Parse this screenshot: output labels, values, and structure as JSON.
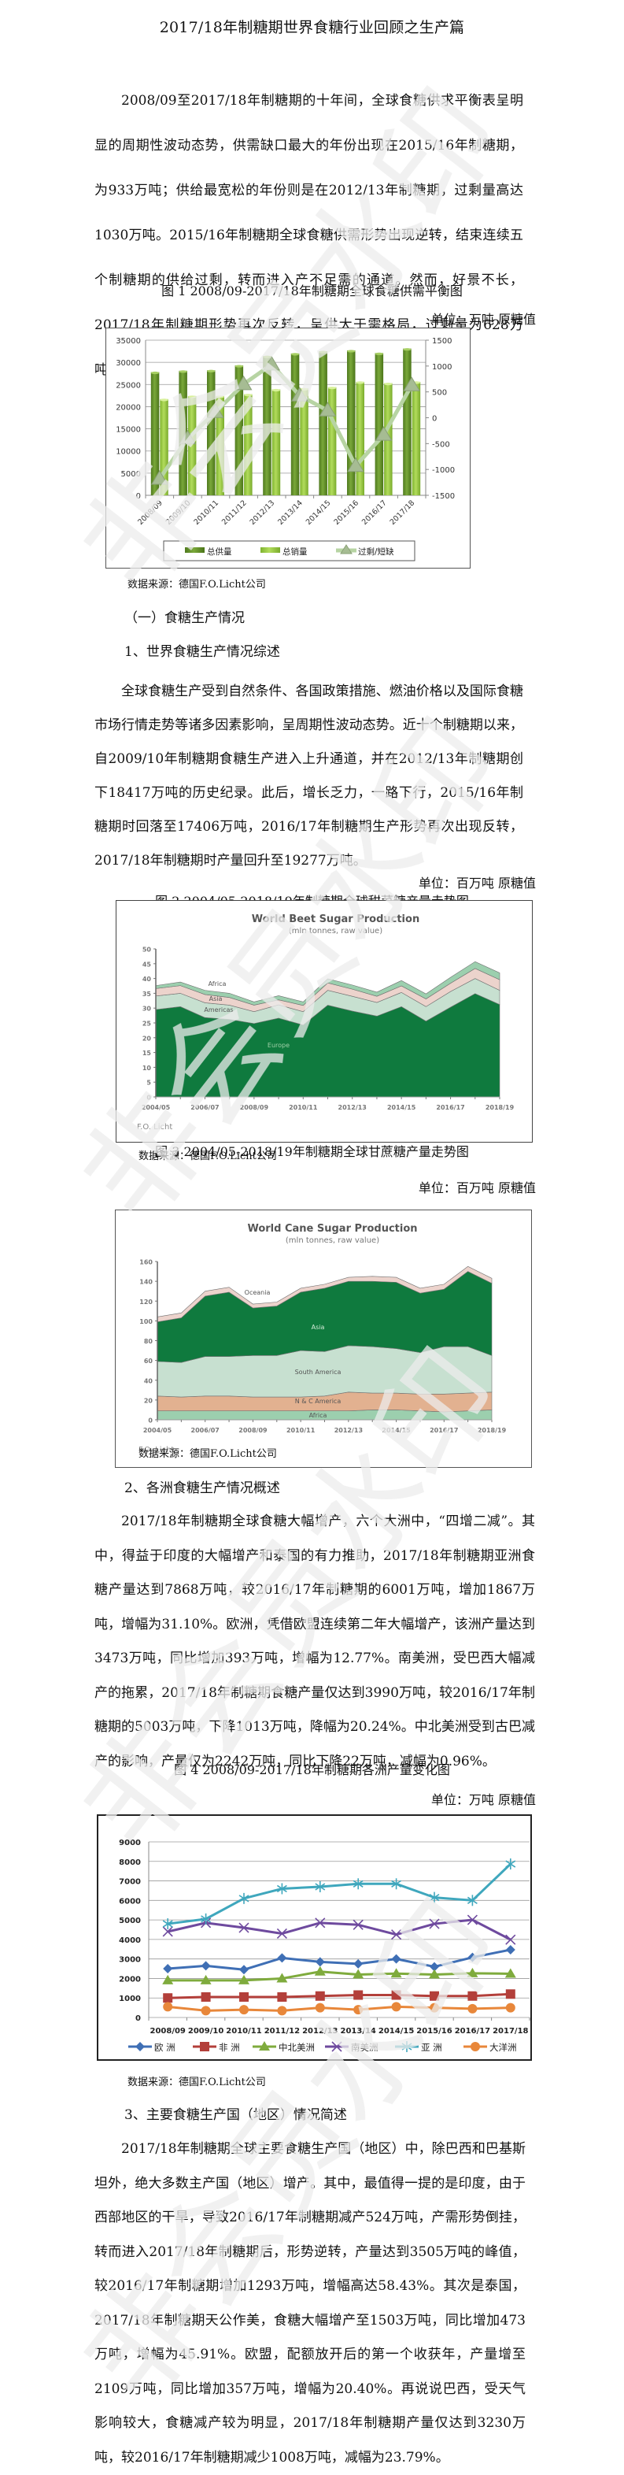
{
  "document": {
    "title": "2017/18年制糖期世界食糖行业回顾之生产篇",
    "intro": "2008/09至2017/18年制糖期的十年间，全球食糖供求平衡表呈明显的周期性波动态势，供需缺口最大的年份出现在2015/16年制糖期，为933万吨；供给最宽松的年份则是在2012/13年制糖期，过剩量高达1030万吨。2015/16年制糖期全球食糖供需形势出现逆转，结束连续五个制糖期的供给过剩，转而进入产不足需的通道。然而，好景不长，2017/18年制糖期形势再次反转，呈供大于需格局，过剩量为628万吨。",
    "fig1_caption": "图 1 2008/09-2017/18年制糖期全球食糖供需平衡图",
    "fig1_unit": "单位：万吨 原糖值",
    "source": "数据来源：德国F.O.Licht公司",
    "section1": "（一）食糖生产情况",
    "sub1": "1、世界食糖生产情况综述",
    "p1": "全球食糖生产受到自然条件、各国政策措施、燃油价格以及国际食糖市场行情走势等诸多因素影响，呈周期性波动态势。近十个制糖期以来，自2009/10年制糖期食糖生产进入上升通道，并在2012/13年制糖期创下18417万吨的历史纪录。此后，增长乏力，一路下行，2015/16年制糖期时回落至17406万吨，2016/17年制糖期生产形势再次出现反转，2017/18年制糖期时产量回升至19277万吨。",
    "fig2_caption": "图 2 2004/05-2018/19年制糖期全球甜菜糖产量走势图",
    "fig2_unit": "单位：百万吨 原糖值",
    "fig3_caption": "图 3  2004/05-2018/19年制糖期全球甘蔗糖产量走势图",
    "fig3_unit": "单位：百万吨 原糖值",
    "sub2": "2、各洲食糖生产情况概述",
    "p2": "2017/18年制糖期全球食糖大幅增产，六个大洲中，“四增二减”。其中，得益于印度的大幅增产和泰国的有力推助，2017/18年制糖期亚洲食糖产量达到7868万吨，较2016/17年制糖期的6001万吨，增加1867万吨，增幅为31.10%。欧洲，凭借欧盟连续第二年大幅增产，该洲产量达到3473万吨，同比增加393万吨，增幅为12.77%。南美洲，受巴西大幅减产的拖累，2017/18年制糖期食糖产量仅达到3990万吨，较2016/17年制糖期的5003万吨，下降1013万吨，降幅为20.24%。中北美洲受到古巴减产的影响，产量仅为2242万吨，同比下降22万吨，减幅为0.96%。",
    "fig4_caption": "图 4 2008/09-2017/18年制糖期各洲产量变化图",
    "fig4_unit": "单位：万吨 原糖值",
    "sub3": "3、主要食糖生产国（地区）情况简述",
    "p3": "2017/18年制糖期全球主要食糖生产国（地区）中，除巴西和巴基斯坦外，绝大多数主产国（地区）增产。其中，最值得一提的是印度，由于西部地区的干旱，导致2016/17年制糖期减产524万吨，产需形势倒挂，转而进入2017/18年制糖期后，形势逆转，产量达到3505万吨的峰值，较2016/17年制糖期增加1293万吨，增幅高达58.43%。其次是泰国，2017/18年制糖期天公作美，食糖大幅增产至1503万吨，同比增加473万吨，增幅为45.91%。欧盟，配额放开后的第一个收获年，产量增至2109万吨，同比增加357万吨，增幅为20.40%。再说说巴西，受天气影响较大，食糖减产较为明显，2017/18年制糖期产量仅达到3230万吨，较2016/17年制糖期减少1008万吨，减幅为23.79%。",
    "watermark": "非会员水印"
  },
  "chart_data": [
    {
      "id": "fig1",
      "type": "bar",
      "title": "2008/09-2017/18年制糖期全球食糖供需平衡图",
      "categories": [
        "2008/09",
        "2009/10",
        "2010/11",
        "2011/12",
        "2012/13",
        "2013/14",
        "2014/15",
        "2015/16",
        "2016/17",
        "2017/18"
      ],
      "series": [
        {
          "name": "总供量",
          "type": "bar",
          "axis": "left",
          "color": "#6b9a2e",
          "values": [
            27800,
            28100,
            28200,
            29300,
            31400,
            32000,
            32500,
            32700,
            32100,
            33100
          ]
        },
        {
          "name": "总销量",
          "type": "bar",
          "axis": "left",
          "color": "#9ccc44",
          "values": [
            21700,
            22400,
            22400,
            22800,
            23900,
            24100,
            24400,
            25600,
            25300,
            25600
          ]
        },
        {
          "name": "过剩/短缺",
          "type": "line",
          "axis": "right",
          "color": "#b7d4a3",
          "values": [
            -1180,
            -400,
            110,
            650,
            1030,
            430,
            140,
            -933,
            -330,
            628
          ]
        }
      ],
      "ylim_left": [
        0,
        35000
      ],
      "yticks_left": [
        0,
        5000,
        10000,
        15000,
        20000,
        25000,
        30000,
        35000
      ],
      "ylim_right": [
        -1500,
        1500
      ],
      "yticks_right": [
        -1500,
        -1000,
        -500,
        0,
        500,
        1000,
        1500
      ],
      "legend_position": "bottom",
      "grid": true
    },
    {
      "id": "fig2",
      "type": "area",
      "title": "World Beet Sugar Production",
      "subtitle": "(mln tonnes, raw value)",
      "credit": "F.O. Licht",
      "x": [
        "2004/05",
        "2005/06",
        "2006/07",
        "2007/08",
        "2008/09",
        "2009/10",
        "2010/11",
        "2011/12",
        "2012/13",
        "2013/14",
        "2014/15",
        "2015/16",
        "2016/17",
        "2017/18",
        "2018/19"
      ],
      "xtick_labels": [
        "2004/05",
        "2006/07",
        "2008/09",
        "2010/11",
        "2012/13",
        "2014/15",
        "2016/17",
        "2018/19"
      ],
      "series": [
        {
          "name": "Europe",
          "color": "#0f7a3e",
          "values": [
            29.5,
            30.5,
            26.8,
            26.2,
            24.8,
            26.6,
            24.3,
            31.0,
            29.0,
            27.3,
            30.5,
            25.6,
            30.3,
            34.9,
            31.2
          ]
        },
        {
          "name": "Americas",
          "color": "#c7e0d0",
          "values": [
            4.6,
            4.5,
            5.0,
            4.8,
            4.0,
            4.5,
            4.5,
            5.0,
            5.0,
            4.6,
            4.8,
            4.9,
            5.3,
            5.1,
            4.8
          ]
        },
        {
          "name": "Asia",
          "color": "#ecd3cc",
          "values": [
            2.5,
            2.6,
            2.8,
            2.6,
            2.2,
            1.7,
            2.1,
            2.5,
            2.4,
            2.1,
            2.2,
            2.6,
            2.8,
            3.4,
            3.6
          ]
        },
        {
          "name": "Africa",
          "color": "#9ccfae",
          "values": [
            1.0,
            1.2,
            1.4,
            1.4,
            1.1,
            1.4,
            1.2,
            1.4,
            1.4,
            1.4,
            1.8,
            1.7,
            2.0,
            2.3,
            2.3
          ]
        }
      ],
      "ylim": [
        0,
        50
      ],
      "yticks": [
        0,
        5,
        10,
        15,
        20,
        25,
        30,
        35,
        40,
        45,
        50
      ]
    },
    {
      "id": "fig3",
      "type": "area",
      "title": "World Cane Sugar Production",
      "subtitle": "(mln tonnes, raw value)",
      "credit": "F.O. Licht",
      "x": [
        "2004/05",
        "2005/06",
        "2006/07",
        "2007/08",
        "2008/09",
        "2009/10",
        "2010/11",
        "2011/12",
        "2012/13",
        "2013/14",
        "2014/15",
        "2015/16",
        "2016/17",
        "2017/18",
        "2018/19"
      ],
      "xtick_labels": [
        "2004/05",
        "2006/07",
        "2008/09",
        "2010/11",
        "2012/13",
        "2014/15",
        "2016/17",
        "2018/19"
      ],
      "series": [
        {
          "name": "Africa",
          "color": "#9ccfae",
          "values": [
            9,
            9,
            9,
            9,
            9,
            9,
            9,
            9,
            9,
            10,
            10,
            9,
            8,
            9,
            10
          ]
        },
        {
          "name": "N & C America",
          "color": "#e2b190",
          "values": [
            15,
            14,
            15,
            15,
            14,
            14,
            14,
            15,
            19,
            17,
            17,
            17,
            18,
            18,
            18
          ]
        },
        {
          "name": "South America",
          "color": "#c7e0d0",
          "values": [
            35,
            35,
            40,
            40,
            42,
            42,
            47,
            45,
            47,
            47,
            45,
            42,
            48,
            47,
            37
          ]
        },
        {
          "name": "Asia",
          "color": "#0f7a3e",
          "values": [
            40,
            45,
            61,
            65,
            48,
            50,
            59,
            64,
            65,
            66,
            67,
            60,
            58,
            76,
            73
          ]
        },
        {
          "name": "Oceania",
          "color": "#ecd3cc",
          "values": [
            5,
            5,
            5,
            5,
            4,
            4,
            4,
            4,
            4,
            5,
            5,
            5,
            5,
            5,
            5
          ]
        }
      ],
      "ylim": [
        0,
        160
      ],
      "yticks": [
        0,
        20,
        40,
        60,
        80,
        100,
        120,
        140,
        160
      ]
    },
    {
      "id": "fig4",
      "type": "line",
      "title": "2008/09-2017/18年制糖期各洲产量变化图",
      "categories": [
        "2008/09",
        "2009/10",
        "2010/11",
        "2011/12",
        "2012/13",
        "2013/14",
        "2014/15",
        "2015/16",
        "2016/17",
        "2017/18"
      ],
      "series": [
        {
          "name": "欧 洲",
          "color": "#3f6fb5",
          "marker": "diamond",
          "values": [
            2500,
            2650,
            2450,
            3050,
            2850,
            2750,
            3000,
            2600,
            3080,
            3473
          ]
        },
        {
          "name": "非 洲",
          "color": "#b33f3a",
          "marker": "square",
          "values": [
            1000,
            1050,
            1050,
            1050,
            1100,
            1150,
            1150,
            1100,
            1100,
            1200
          ]
        },
        {
          "name": "中北美洲",
          "color": "#7fab3d",
          "marker": "triangle",
          "values": [
            1900,
            1900,
            1900,
            2000,
            2350,
            2200,
            2250,
            2200,
            2264,
            2242
          ]
        },
        {
          "name": "南美洲",
          "color": "#6e4a9e",
          "marker": "x",
          "values": [
            4400,
            4850,
            4600,
            4300,
            4850,
            4750,
            4250,
            4800,
            5003,
            3990
          ]
        },
        {
          "name": "亚 洲",
          "color": "#3fa7bd",
          "marker": "asterisk",
          "values": [
            4800,
            5050,
            6100,
            6600,
            6700,
            6850,
            6850,
            6150,
            6001,
            7868
          ]
        },
        {
          "name": "大洋洲",
          "color": "#e8873a",
          "marker": "circle",
          "values": [
            550,
            350,
            400,
            350,
            500,
            400,
            550,
            500,
            450,
            500
          ]
        }
      ],
      "ylim": [
        0,
        9000
      ],
      "yticks": [
        0,
        1000,
        2000,
        3000,
        4000,
        5000,
        6000,
        7000,
        8000,
        9000
      ],
      "legend_position": "bottom",
      "grid": true
    }
  ]
}
